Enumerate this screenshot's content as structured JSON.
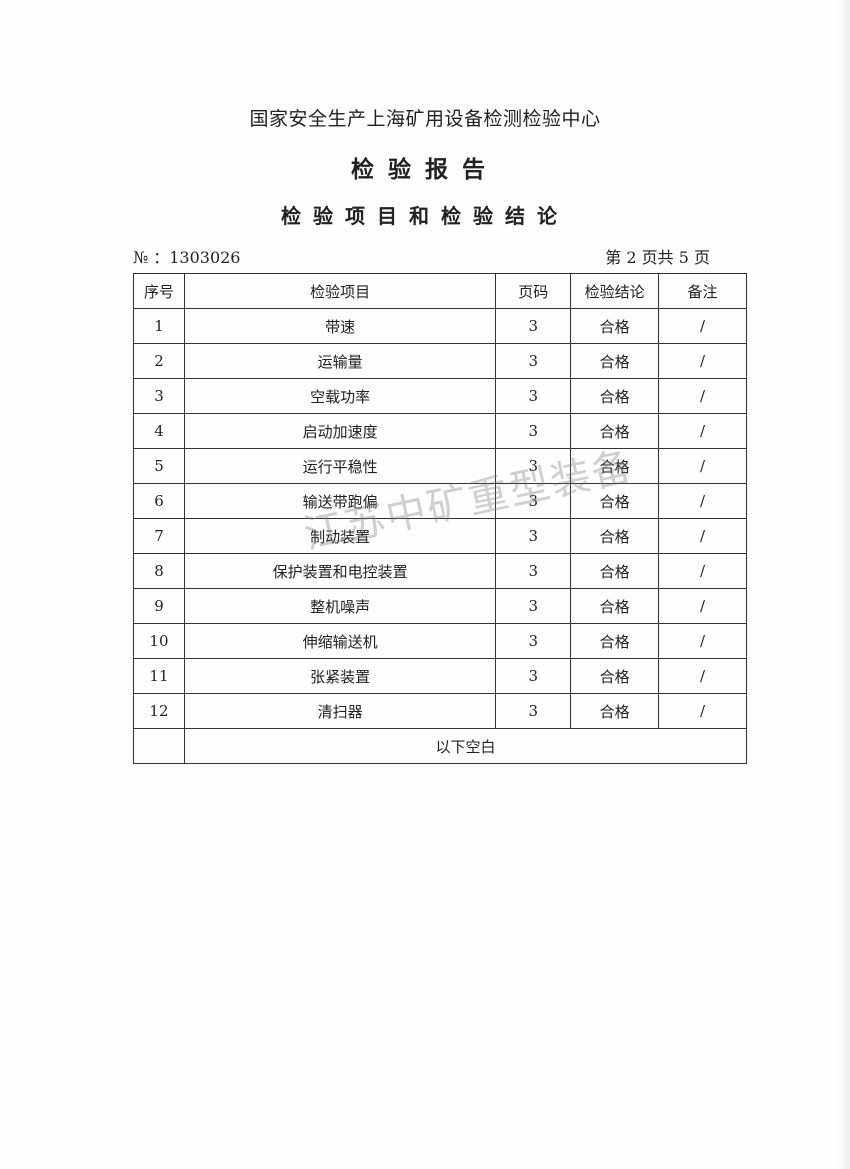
{
  "header": {
    "organization": "国家安全生产上海矿用设备检测检验中心",
    "title": "检验报告",
    "subtitle": "检验项目和检验结论",
    "report_no": "№ ：1303026",
    "page_info": "第 2 页共 5 页"
  },
  "table": {
    "columns": [
      "序号",
      "检验项目",
      "页码",
      "检验结论",
      "备注"
    ],
    "rows": [
      [
        "1",
        "带速",
        "3",
        "合格",
        "/"
      ],
      [
        "2",
        "运输量",
        "3",
        "合格",
        "/"
      ],
      [
        "3",
        "空载功率",
        "3",
        "合格",
        "/"
      ],
      [
        "4",
        "启动加速度",
        "3",
        "合格",
        "/"
      ],
      [
        "5",
        "运行平稳性",
        "3",
        "合格",
        "/"
      ],
      [
        "6",
        "输送带跑偏",
        "3",
        "合格",
        "/"
      ],
      [
        "7",
        "制动装置",
        "3",
        "合格",
        "/"
      ],
      [
        "8",
        "保护装置和电控装置",
        "3",
        "合格",
        "/"
      ],
      [
        "9",
        "整机噪声",
        "3",
        "合格",
        "/"
      ],
      [
        "10",
        "伸缩输送机",
        "3",
        "合格",
        "/"
      ],
      [
        "11",
        "张紧装置",
        "3",
        "合格",
        "/"
      ],
      [
        "12",
        "清扫器",
        "3",
        "合格",
        "/"
      ]
    ],
    "blank_note": "以下空白"
  },
  "watermark": "江苏中矿重型装备"
}
